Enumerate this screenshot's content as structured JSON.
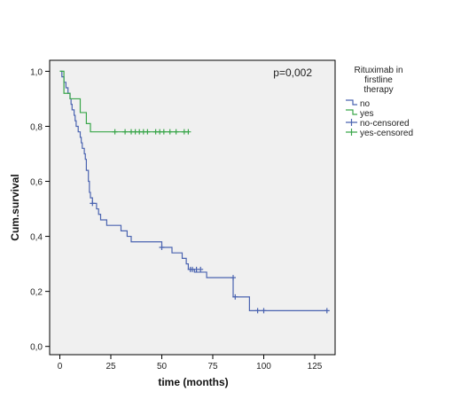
{
  "chart_data": {
    "type": "line",
    "subtype": "kaplan-meier step",
    "annotation": "p=0,002",
    "xlabel": "time (months)",
    "ylabel": "Cum.survival",
    "xlim": [
      -5,
      135
    ],
    "ylim": [
      -0.03,
      1.04
    ],
    "x_ticks": [
      0,
      25,
      50,
      75,
      100,
      125
    ],
    "x_tick_labels": [
      "0",
      "25",
      "50",
      "75",
      "100",
      "125"
    ],
    "y_ticks": [
      0,
      0.2,
      0.4,
      0.6,
      0.8,
      1.0
    ],
    "y_tick_labels": [
      "0,0",
      "0,2",
      "0,4",
      "0,6",
      "0,8",
      "1,0"
    ],
    "grid": false,
    "plot_background": "#f0f0f0",
    "legend": {
      "title": "Rituximab in firstline therapy",
      "position": "right",
      "entries": [
        {
          "label": "no",
          "color": "#4a63b0",
          "marker": "step"
        },
        {
          "label": "yes",
          "color": "#3aa64a",
          "marker": "step"
        },
        {
          "label": "no-censored",
          "color": "#4a63b0",
          "marker": "plus"
        },
        {
          "label": "yes-censored",
          "color": "#3aa64a",
          "marker": "plus"
        }
      ]
    },
    "series": [
      {
        "name": "no",
        "color": "#4a63b0",
        "steps": [
          [
            0,
            1.0
          ],
          [
            1,
            0.98
          ],
          [
            2,
            0.96
          ],
          [
            3,
            0.94
          ],
          [
            4,
            0.92
          ],
          [
            5,
            0.9
          ],
          [
            5.5,
            0.88
          ],
          [
            6,
            0.86
          ],
          [
            7,
            0.84
          ],
          [
            7.5,
            0.82
          ],
          [
            8,
            0.8
          ],
          [
            9,
            0.78
          ],
          [
            10,
            0.76
          ],
          [
            10.5,
            0.74
          ],
          [
            11,
            0.72
          ],
          [
            12,
            0.7
          ],
          [
            12.5,
            0.68
          ],
          [
            13,
            0.64
          ],
          [
            14,
            0.6
          ],
          [
            14.5,
            0.56
          ],
          [
            15,
            0.54
          ],
          [
            16,
            0.52
          ],
          [
            18,
            0.5
          ],
          [
            19,
            0.48
          ],
          [
            20,
            0.46
          ],
          [
            23,
            0.44
          ],
          [
            30,
            0.42
          ],
          [
            33,
            0.4
          ],
          [
            35,
            0.38
          ],
          [
            50,
            0.36
          ],
          [
            55,
            0.34
          ],
          [
            60,
            0.32
          ],
          [
            62,
            0.3
          ],
          [
            63,
            0.28
          ],
          [
            66,
            0.27
          ],
          [
            72,
            0.25
          ],
          [
            85,
            0.18
          ],
          [
            93,
            0.13
          ]
        ],
        "end_x": 131,
        "censored": [
          [
            16,
            0.52
          ],
          [
            50,
            0.36
          ],
          [
            64,
            0.28
          ],
          [
            65,
            0.28
          ],
          [
            67,
            0.28
          ],
          [
            69,
            0.28
          ],
          [
            85,
            0.25
          ],
          [
            86,
            0.18
          ],
          [
            97,
            0.13
          ],
          [
            100,
            0.13
          ],
          [
            131,
            0.13
          ]
        ]
      },
      {
        "name": "yes",
        "color": "#3aa64a",
        "steps": [
          [
            0,
            1.0
          ],
          [
            2,
            0.92
          ],
          [
            5,
            0.9
          ],
          [
            10,
            0.85
          ],
          [
            13,
            0.81
          ],
          [
            15,
            0.78
          ]
        ],
        "end_x": 63,
        "censored": [
          [
            27,
            0.78
          ],
          [
            32,
            0.78
          ],
          [
            35,
            0.78
          ],
          [
            37,
            0.78
          ],
          [
            39,
            0.78
          ],
          [
            41,
            0.78
          ],
          [
            43,
            0.78
          ],
          [
            47,
            0.78
          ],
          [
            49,
            0.78
          ],
          [
            51,
            0.78
          ],
          [
            54,
            0.78
          ],
          [
            57,
            0.78
          ],
          [
            61,
            0.78
          ],
          [
            63,
            0.78
          ]
        ]
      }
    ]
  }
}
